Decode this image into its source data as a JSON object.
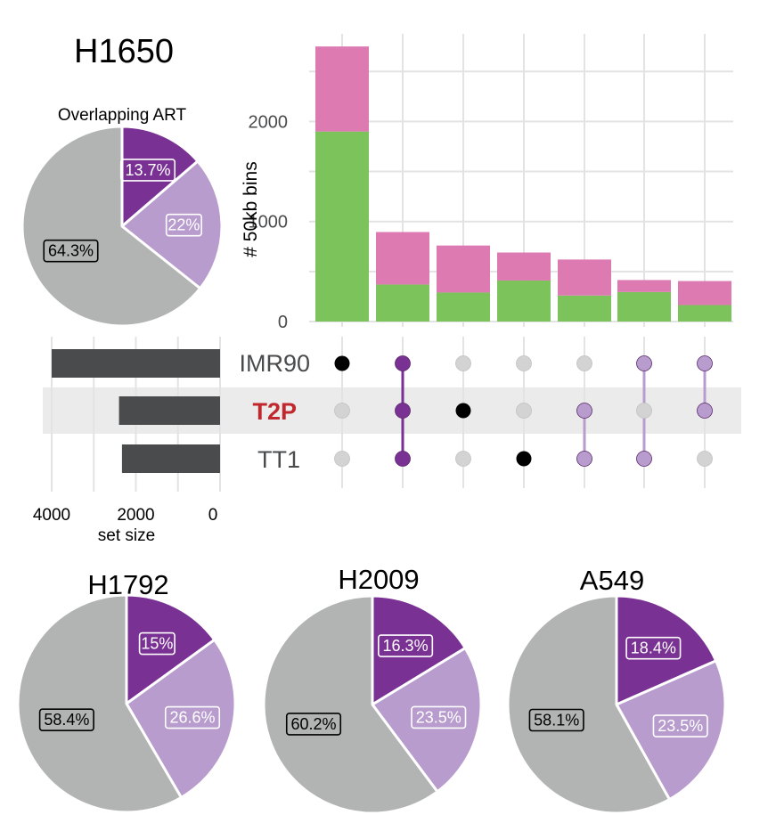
{
  "colors": {
    "dark_purple": "#7a3194",
    "light_purple": "#b89ccd",
    "gray_slice": "#b2b4b3",
    "green": "#7cc35b",
    "pink": "#dd7ab2",
    "bar_dark": "#4a4b4c",
    "grid": "#e3e3e3",
    "band": "#ebebeb",
    "dot_inactive": "#d3d3d3",
    "dot_active_black": "#000000",
    "t2p_red": "#c0282e"
  },
  "chart_data": [
    {
      "type": "pie",
      "title": "H1650",
      "subtitle": "Overlapping ART",
      "slices": [
        {
          "value": 13.7,
          "label": "13.7%",
          "color": "#7a3194"
        },
        {
          "value": 22.0,
          "label": "22%",
          "color": "#b89ccd"
        },
        {
          "value": 64.3,
          "label": "64.3%",
          "color": "#b2b4b3"
        }
      ]
    },
    {
      "type": "bar",
      "stacked": true,
      "ylabel": "# 50kb bins",
      "yticks": [
        0,
        1000,
        2000
      ],
      "ylim": [
        0,
        2900
      ],
      "grid": true,
      "series": [
        {
          "color": "#7cc35b",
          "values": [
            1900,
            370,
            290,
            410,
            260,
            295,
            165
          ]
        },
        {
          "color": "#dd7ab2",
          "values": [
            850,
            525,
            470,
            280,
            360,
            120,
            240
          ]
        }
      ]
    },
    {
      "type": "bar",
      "orientation": "horizontal",
      "xlabel": "set size",
      "xticks": [
        4000,
        2000,
        0
      ],
      "xlim": [
        0,
        4300
      ],
      "sets": [
        "IMR90",
        "T2P",
        "TT1"
      ],
      "values": [
        4000,
        2400,
        2330
      ]
    },
    {
      "type": "table",
      "name": "intersection-matrix",
      "sets": [
        "IMR90",
        "T2P",
        "TT1"
      ],
      "membership": [
        [
          true,
          false,
          false
        ],
        [
          true,
          true,
          true
        ],
        [
          false,
          true,
          false
        ],
        [
          false,
          false,
          true
        ],
        [
          false,
          true,
          true
        ],
        [
          true,
          false,
          true
        ],
        [
          true,
          true,
          false
        ]
      ],
      "dot_colors": [
        "#000000",
        "#7a3194",
        "#000000",
        "#000000",
        "#b89ccd",
        "#b89ccd",
        "#b89ccd"
      ]
    },
    {
      "type": "pie",
      "title": "H1792",
      "slices": [
        {
          "value": 15.0,
          "label": "15%",
          "color": "#7a3194"
        },
        {
          "value": 26.6,
          "label": "26.6%",
          "color": "#b89ccd"
        },
        {
          "value": 58.4,
          "label": "58.4%",
          "color": "#b2b4b3"
        }
      ]
    },
    {
      "type": "pie",
      "title": "H2009",
      "slices": [
        {
          "value": 16.3,
          "label": "16.3%",
          "color": "#7a3194"
        },
        {
          "value": 23.5,
          "label": "23.5%",
          "color": "#b89ccd"
        },
        {
          "value": 60.2,
          "label": "60.2%",
          "color": "#b2b4b3"
        }
      ]
    },
    {
      "type": "pie",
      "title": "A549",
      "slices": [
        {
          "value": 18.4,
          "label": "18.4%",
          "color": "#7a3194"
        },
        {
          "value": 23.5,
          "label": "23.5%",
          "color": "#b89ccd"
        },
        {
          "value": 58.1,
          "label": "58.1%",
          "color": "#b2b4b3"
        }
      ]
    }
  ]
}
